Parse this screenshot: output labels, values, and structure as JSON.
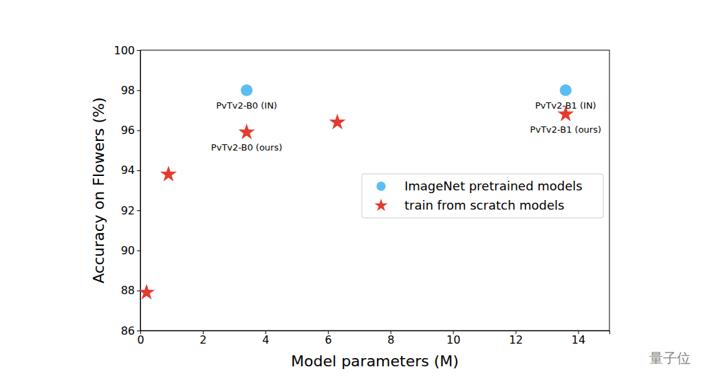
{
  "chart_data": {
    "type": "scatter",
    "x_label": "Model parameters (M)",
    "y_label": "Accuracy on Flowers (%)",
    "xlim": [
      0,
      15
    ],
    "xticks": [
      0,
      2,
      4,
      6,
      8,
      10,
      12,
      14
    ],
    "ylim": [
      86,
      100
    ],
    "yticks": [
      86,
      88,
      90,
      92,
      94,
      96,
      98,
      100
    ],
    "legend": "right",
    "series": [
      {
        "name": "ImageNet pretrained models",
        "color": "#5bbdf3",
        "marker": "circle",
        "x": [
          3.4,
          13.6
        ],
        "values": [
          98.0,
          98.0
        ]
      },
      {
        "name": "train from scratch models",
        "color": "#e33b2e",
        "marker": "star",
        "x": [
          0.2,
          0.9,
          3.4,
          6.3,
          13.6
        ],
        "values": [
          87.9,
          93.8,
          95.9,
          96.4,
          96.8
        ]
      }
    ],
    "annotations": [
      {
        "text": "PvTv2-B0 (IN)",
        "x": 3.4,
        "y": 98.0
      },
      {
        "text": "PvTv2-B1 (IN)",
        "x": 13.6,
        "y": 98.0
      },
      {
        "text": "PvTv2-B0 (ours)",
        "x": 3.4,
        "y": 95.9
      },
      {
        "text": "PvTv2-B1 (ours)",
        "x": 13.6,
        "y": 96.8
      }
    ],
    "watermark": "量子位"
  }
}
